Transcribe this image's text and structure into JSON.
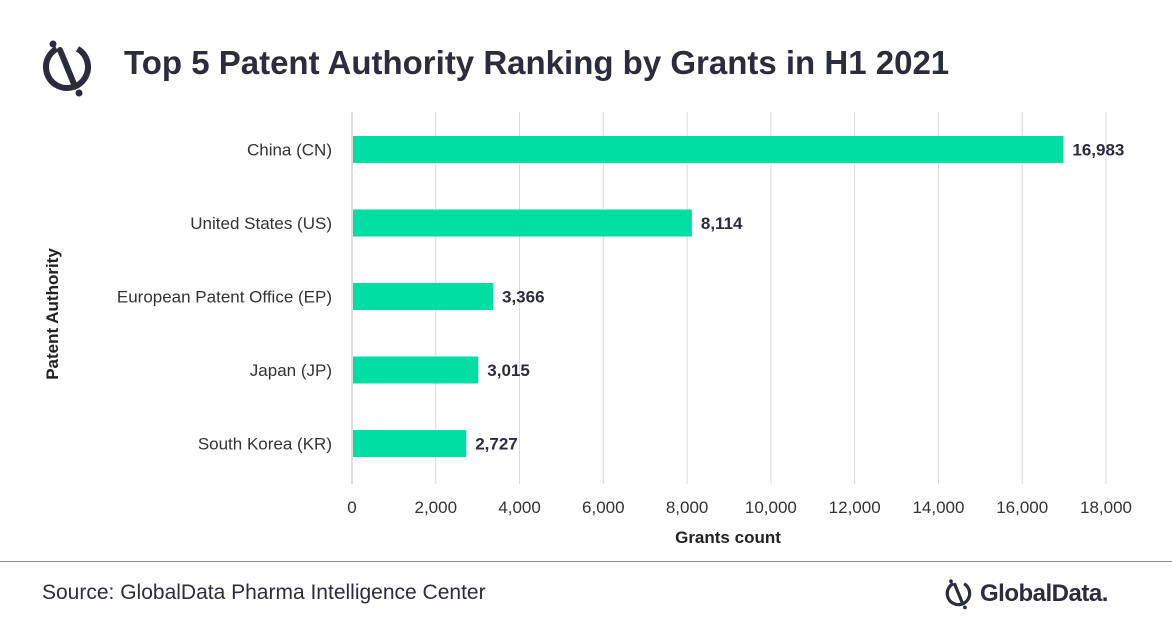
{
  "header": {
    "title": "Top 5 Patent Authority Ranking by Grants in H1 2021"
  },
  "chart_data": {
    "type": "bar",
    "orientation": "horizontal",
    "title": "Top 5 Patent Authority Ranking by Grants in H1 2021",
    "categories": [
      "China (CN)",
      "United States (US)",
      "European Patent Office (EP)",
      "Japan (JP)",
      "South Korea (KR)"
    ],
    "values": [
      16983,
      8114,
      3366,
      3015,
      2727
    ],
    "value_labels": [
      "16,983",
      "8,114",
      "3,366",
      "3,015",
      "2,727"
    ],
    "xlabel": "Grants count",
    "ylabel": "Patent Authority",
    "xlim": [
      0,
      18000
    ],
    "xticks": [
      0,
      2000,
      4000,
      6000,
      8000,
      10000,
      12000,
      14000,
      16000,
      18000
    ],
    "xtick_labels": [
      "0",
      "2,000",
      "4,000",
      "6,000",
      "8,000",
      "10,000",
      "12,000",
      "14,000",
      "16,000",
      "18,000"
    ],
    "grid": true,
    "bar_color": "#00dea4",
    "grid_color": "#d9d9d9"
  },
  "footer": {
    "source": "Source: GlobalData Pharma Intelligence Center",
    "brand": "GlobalData."
  },
  "icons": {
    "logo": "globaldata-logo-icon"
  },
  "colors": {
    "title": "#2b2d3b",
    "text": "#333333",
    "bar": "#00dea4"
  }
}
